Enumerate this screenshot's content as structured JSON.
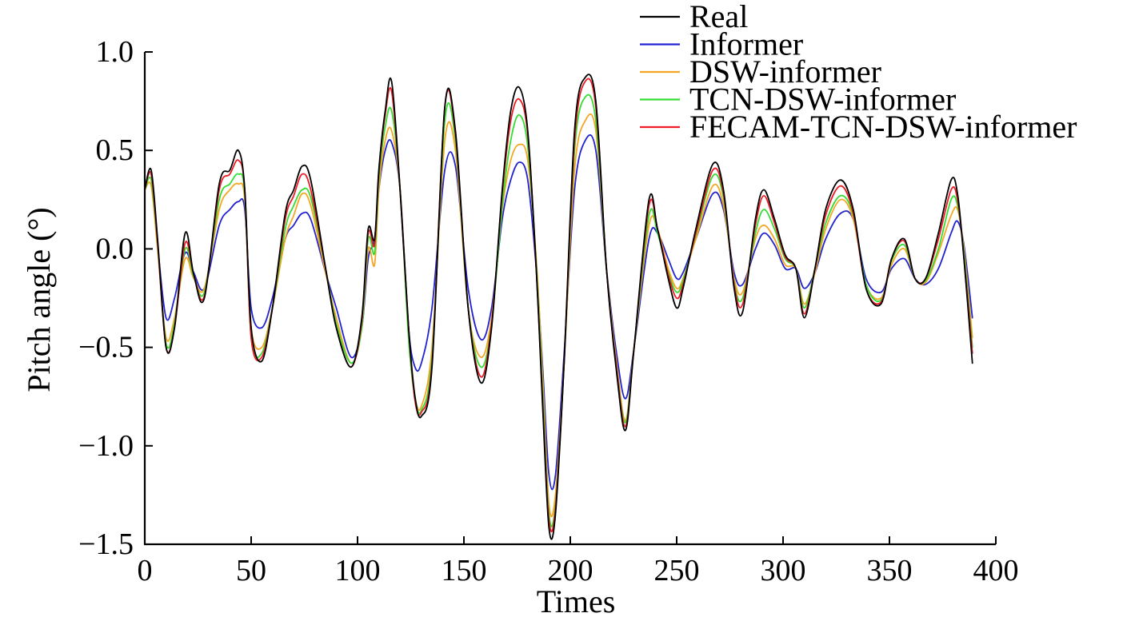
{
  "chart_data": {
    "type": "line",
    "xlabel": "Times",
    "ylabel": "Pitch angle (°)",
    "xlim": [
      0,
      400
    ],
    "ylim": [
      -1.5,
      1.0
    ],
    "x_ticks": [
      "0",
      "50",
      "100",
      "150",
      "200",
      "250",
      "300",
      "350",
      "400"
    ],
    "y_ticks": [
      "1.0",
      "0.5",
      "0.0",
      "−0.5",
      "−1.0",
      "−1.5"
    ],
    "legend_position": "top-right",
    "grid": false,
    "x": [
      0,
      3,
      6,
      10,
      14,
      19,
      23,
      28,
      35,
      40,
      44,
      47,
      50,
      55,
      60,
      66,
      70,
      74,
      78,
      85,
      90,
      97,
      102,
      105,
      108,
      110,
      113,
      116,
      120,
      124,
      127,
      130,
      135,
      141,
      146,
      152,
      158,
      163,
      168,
      172,
      176,
      180,
      184,
      187,
      190,
      193,
      197,
      202,
      207,
      212,
      217,
      222,
      226,
      230,
      237,
      241,
      246,
      250,
      253,
      259,
      267,
      272,
      277,
      281,
      287,
      291,
      296,
      301,
      306,
      310,
      315,
      320,
      327,
      333,
      339,
      346,
      351,
      357,
      362,
      367,
      373,
      379,
      382,
      385,
      389
    ],
    "series": [
      {
        "name": "Real",
        "color": "#000000",
        "values": [
          0.3,
          0.4,
          0.05,
          -0.5,
          -0.4,
          0.08,
          -0.13,
          -0.25,
          0.33,
          0.4,
          0.5,
          0.3,
          -0.4,
          -0.57,
          -0.3,
          0.18,
          0.3,
          0.42,
          0.35,
          -0.1,
          -0.4,
          -0.6,
          -0.35,
          0.1,
          0.05,
          0.4,
          0.7,
          0.85,
          0.3,
          -0.4,
          -0.75,
          -0.85,
          -0.6,
          0.72,
          0.6,
          -0.3,
          -0.68,
          -0.4,
          0.3,
          0.7,
          0.82,
          0.6,
          -0.1,
          -0.8,
          -1.42,
          -1.35,
          -0.6,
          0.6,
          0.87,
          0.75,
          -0.1,
          -0.65,
          -0.92,
          -0.5,
          0.25,
          0.1,
          -0.15,
          -0.3,
          -0.2,
          0.1,
          0.43,
          0.3,
          -0.2,
          -0.32,
          0.15,
          0.3,
          0.15,
          -0.03,
          -0.1,
          -0.35,
          -0.1,
          0.2,
          0.35,
          0.2,
          -0.2,
          -0.28,
          -0.05,
          0.05,
          -0.15,
          -0.15,
          0.08,
          0.35,
          0.28,
          -0.05,
          -0.58
        ]
      },
      {
        "name": "Informer",
        "color": "#2222d0",
        "values": [
          0.3,
          0.38,
          0.02,
          -0.35,
          -0.25,
          -0.02,
          -0.12,
          -0.2,
          0.12,
          0.2,
          0.24,
          0.2,
          -0.3,
          -0.4,
          -0.25,
          0.05,
          0.12,
          0.18,
          0.15,
          -0.12,
          -0.3,
          -0.55,
          -0.4,
          -0.05,
          0.05,
          0.3,
          0.5,
          0.54,
          0.3,
          -0.4,
          -0.6,
          -0.58,
          -0.3,
          0.4,
          0.42,
          -0.2,
          -0.46,
          -0.3,
          0.15,
          0.35,
          0.44,
          0.35,
          -0.1,
          -0.6,
          -1.15,
          -1.15,
          -0.55,
          0.3,
          0.55,
          0.5,
          -0.1,
          -0.55,
          -0.76,
          -0.5,
          0.05,
          0.08,
          -0.05,
          -0.15,
          -0.12,
          0.05,
          0.28,
          0.2,
          -0.12,
          -0.18,
          0.0,
          0.08,
          0.02,
          -0.1,
          -0.1,
          -0.2,
          -0.12,
          0.05,
          0.18,
          0.15,
          -0.15,
          -0.22,
          -0.1,
          -0.05,
          -0.15,
          -0.18,
          -0.1,
          0.08,
          0.14,
          0.02,
          -0.35
        ]
      },
      {
        "name": "DSW-informer",
        "color": "#f5a623",
        "values": [
          0.3,
          0.32,
          0.0,
          -0.45,
          -0.35,
          -0.05,
          -0.15,
          -0.2,
          0.2,
          0.3,
          0.33,
          0.25,
          -0.4,
          -0.5,
          -0.3,
          0.05,
          0.17,
          0.28,
          0.22,
          -0.12,
          -0.35,
          -0.58,
          -0.4,
          0.0,
          -0.08,
          0.3,
          0.55,
          0.6,
          0.3,
          -0.45,
          -0.75,
          -0.8,
          -0.5,
          0.55,
          0.5,
          -0.3,
          -0.55,
          -0.35,
          0.2,
          0.45,
          0.53,
          0.45,
          -0.05,
          -0.65,
          -1.3,
          -1.25,
          -0.6,
          0.4,
          0.65,
          0.6,
          -0.1,
          -0.6,
          -0.87,
          -0.5,
          0.12,
          0.1,
          -0.1,
          -0.2,
          -0.15,
          0.05,
          0.32,
          0.22,
          -0.15,
          -0.22,
          0.05,
          0.12,
          0.05,
          -0.08,
          -0.1,
          -0.28,
          -0.12,
          0.1,
          0.25,
          0.15,
          -0.18,
          -0.25,
          -0.08,
          0.0,
          -0.15,
          -0.17,
          -0.02,
          0.17,
          0.2,
          0.0,
          -0.45
        ]
      },
      {
        "name": "TCN-DSW-informer",
        "color": "#33dd33",
        "values": [
          0.3,
          0.35,
          0.02,
          -0.48,
          -0.38,
          0.0,
          -0.14,
          -0.22,
          0.25,
          0.33,
          0.38,
          0.28,
          -0.45,
          -0.53,
          -0.3,
          0.1,
          0.22,
          0.3,
          0.26,
          -0.1,
          -0.38,
          -0.58,
          -0.4,
          0.05,
          -0.02,
          0.35,
          0.62,
          0.7,
          0.3,
          -0.45,
          -0.76,
          -0.82,
          -0.55,
          0.65,
          0.55,
          -0.3,
          -0.6,
          -0.38,
          0.22,
          0.55,
          0.68,
          0.52,
          -0.08,
          -0.72,
          -1.35,
          -1.3,
          -0.6,
          0.5,
          0.77,
          0.65,
          -0.1,
          -0.62,
          -0.88,
          -0.5,
          0.17,
          0.08,
          -0.12,
          -0.22,
          -0.16,
          0.07,
          0.37,
          0.26,
          -0.17,
          -0.25,
          0.08,
          0.2,
          0.1,
          -0.05,
          -0.1,
          -0.3,
          -0.1,
          0.13,
          0.27,
          0.17,
          -0.18,
          -0.26,
          -0.06,
          0.02,
          -0.15,
          -0.16,
          0.0,
          0.25,
          0.22,
          -0.02,
          -0.5
        ]
      },
      {
        "name": "FECAM-TCN-DSW-informer",
        "color": "#ee1c24",
        "values": [
          0.3,
          0.38,
          0.03,
          -0.5,
          -0.4,
          0.03,
          -0.13,
          -0.24,
          0.3,
          0.38,
          0.45,
          0.3,
          -0.45,
          -0.55,
          -0.3,
          0.15,
          0.27,
          0.38,
          0.3,
          -0.1,
          -0.4,
          -0.6,
          -0.37,
          0.08,
          0.02,
          0.38,
          0.68,
          0.8,
          0.3,
          -0.4,
          -0.77,
          -0.83,
          -0.58,
          0.72,
          0.58,
          -0.3,
          -0.65,
          -0.38,
          0.28,
          0.65,
          0.76,
          0.58,
          -0.1,
          -0.77,
          -1.38,
          -1.32,
          -0.6,
          0.55,
          0.85,
          0.72,
          -0.1,
          -0.63,
          -0.9,
          -0.5,
          0.22,
          0.1,
          -0.13,
          -0.25,
          -0.18,
          0.08,
          0.4,
          0.28,
          -0.18,
          -0.28,
          0.12,
          0.27,
          0.13,
          -0.04,
          -0.1,
          -0.33,
          -0.1,
          0.17,
          0.32,
          0.18,
          -0.2,
          -0.27,
          -0.05,
          0.04,
          -0.15,
          -0.15,
          0.05,
          0.3,
          0.25,
          -0.04,
          -0.53
        ]
      }
    ]
  }
}
